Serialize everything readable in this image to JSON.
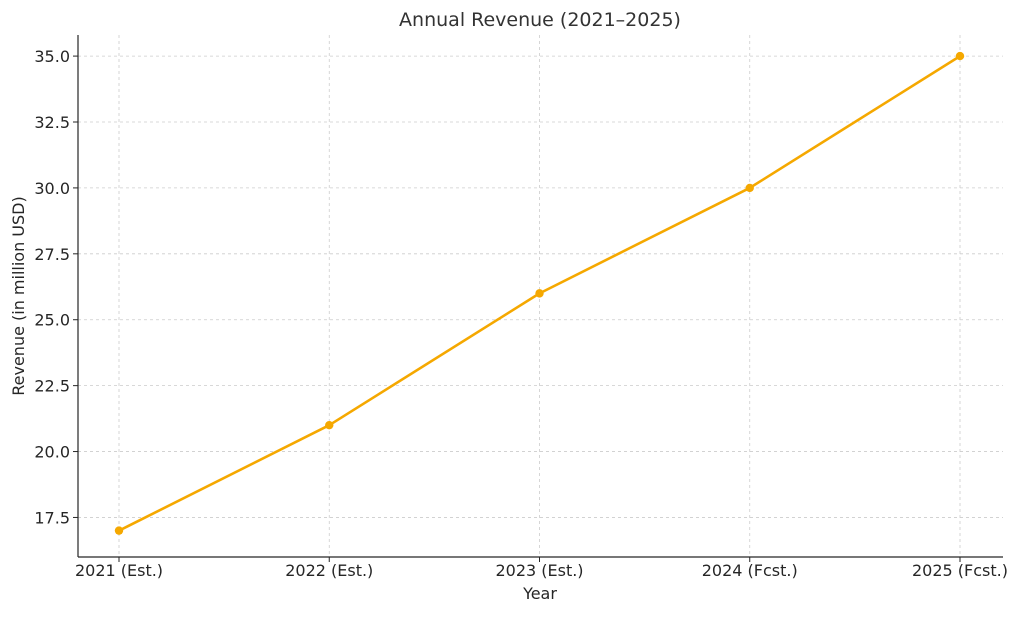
{
  "chart_data": {
    "type": "line",
    "title": "Annual Revenue (2021–2025)",
    "xlabel": "Year",
    "ylabel": "Revenue (in million USD)",
    "categories": [
      "2021 (Est.)",
      "2022 (Est.)",
      "2023 (Est.)",
      "2024 (Fcst.)",
      "2025 (Fcst.)"
    ],
    "series": [
      {
        "values": [
          17,
          21,
          26,
          30,
          35
        ],
        "color": "#f5a800"
      }
    ],
    "ylim": [
      16.0,
      35.8
    ],
    "yticks": [
      17.5,
      20.0,
      22.5,
      25.0,
      27.5,
      30.0,
      32.5,
      35.0
    ],
    "ytick_labels": [
      "17.5",
      "20.0",
      "22.5",
      "25.0",
      "27.5",
      "30.0",
      "32.5",
      "35.0"
    ],
    "grid": true,
    "marker": "circle"
  }
}
